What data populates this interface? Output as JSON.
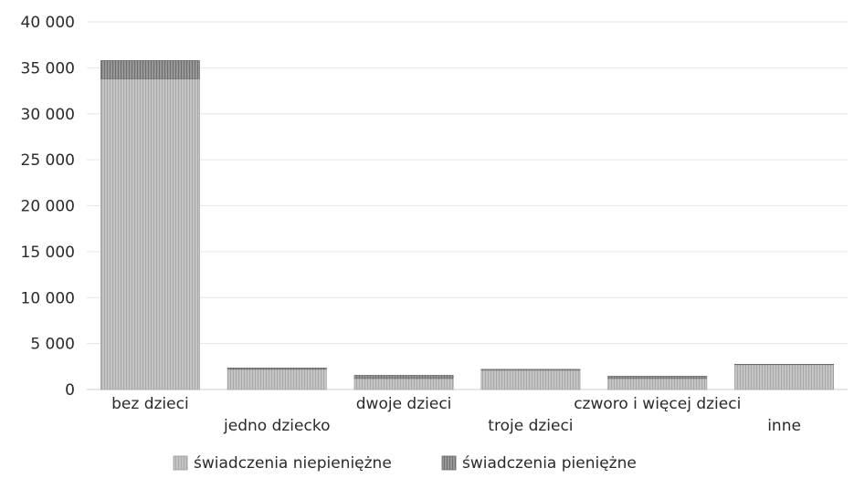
{
  "chart_data": {
    "type": "bar",
    "stacked": true,
    "categories": [
      "bez dzieci",
      "jedno dziecko",
      "dwoje dzieci",
      "troje dzieci",
      "czworo i więcej dzieci",
      "inne"
    ],
    "series": [
      {
        "name": "świadczenia niepieniężne",
        "values": [
          33800,
          2200,
          1200,
          2100,
          1200,
          2700
        ]
      },
      {
        "name": "świadczenia pieniężne",
        "values": [
          2000,
          150,
          350,
          100,
          250,
          50
        ]
      }
    ],
    "yticks": [
      "0",
      "5 000",
      "10 000",
      "15 000",
      "20 000",
      "25 000",
      "30 000",
      "35 000",
      "40 000"
    ],
    "ylim": [
      0,
      40000
    ],
    "legend_position": "bottom",
    "colors": {
      "niepieniezne": "#bdbdbd",
      "pieniezne": "#8e8e8e",
      "grid": "#e6e6e6"
    }
  }
}
